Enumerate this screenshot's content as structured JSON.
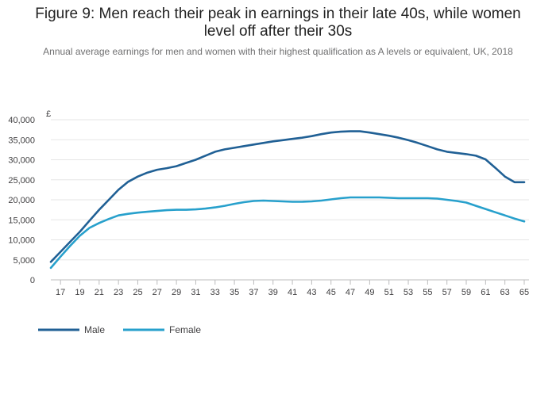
{
  "title_line1": "Figure 9: Men reach their peak in earnings in their late 40s, while women",
  "title_line2": "level off after their 30s",
  "subtitle": "Annual average earnings for men and women with their highest qualification as A levels or equivalent, UK, 2018",
  "chart_data": {
    "type": "line",
    "ylabel": "£",
    "ylim": [
      0,
      40000
    ],
    "yticks": [
      0,
      5000,
      10000,
      15000,
      20000,
      25000,
      30000,
      35000,
      40000
    ],
    "ytick_labels": [
      "0",
      "5,000",
      "10,000",
      "15,000",
      "20,000",
      "25,000",
      "30,000",
      "35,000",
      "40,000"
    ],
    "xlim": [
      16,
      65
    ],
    "xticks": [
      17,
      19,
      21,
      23,
      25,
      27,
      29,
      31,
      33,
      35,
      37,
      39,
      41,
      43,
      45,
      47,
      49,
      51,
      53,
      55,
      57,
      59,
      61,
      63,
      65
    ],
    "x": [
      16,
      17,
      18,
      19,
      20,
      21,
      22,
      23,
      24,
      25,
      26,
      27,
      28,
      29,
      30,
      31,
      32,
      33,
      34,
      35,
      36,
      37,
      38,
      39,
      40,
      41,
      42,
      43,
      44,
      45,
      46,
      47,
      48,
      49,
      50,
      51,
      52,
      53,
      54,
      55,
      56,
      57,
      58,
      59,
      60,
      61,
      62,
      63,
      64,
      65
    ],
    "grid": true,
    "legend_position": "bottom-left",
    "series": [
      {
        "name": "Male",
        "color": "#206095",
        "values": [
          4500,
          7000,
          9500,
          12000,
          14800,
          17500,
          20000,
          22500,
          24500,
          25800,
          26800,
          27500,
          27900,
          28400,
          29200,
          30000,
          31000,
          32000,
          32600,
          33000,
          33400,
          33800,
          34200,
          34600,
          34900,
          35200,
          35500,
          35900,
          36400,
          36800,
          37000,
          37100,
          37100,
          36800,
          36400,
          36000,
          35500,
          34900,
          34200,
          33400,
          32600,
          32000,
          31700,
          31400,
          31000,
          30100,
          28000,
          25800,
          24400,
          24400
        ],
        "values_note": ""
      },
      {
        "name": "Female",
        "color": "#27a0cc",
        "values": [
          3000,
          5800,
          8500,
          11000,
          13000,
          14200,
          15200,
          16100,
          16500,
          16800,
          17000,
          17200,
          17400,
          17500,
          17500,
          17600,
          17800,
          18100,
          18500,
          19000,
          19400,
          19700,
          19800,
          19700,
          19600,
          19500,
          19500,
          19600,
          19800,
          20100,
          20400,
          20600,
          20600,
          20600,
          20600,
          20500,
          20400,
          20400,
          20400,
          20400,
          20300,
          20000,
          19700,
          19300,
          18500,
          17700,
          16900,
          16100,
          15300,
          14600
        ],
        "values_note": ""
      }
    ]
  }
}
